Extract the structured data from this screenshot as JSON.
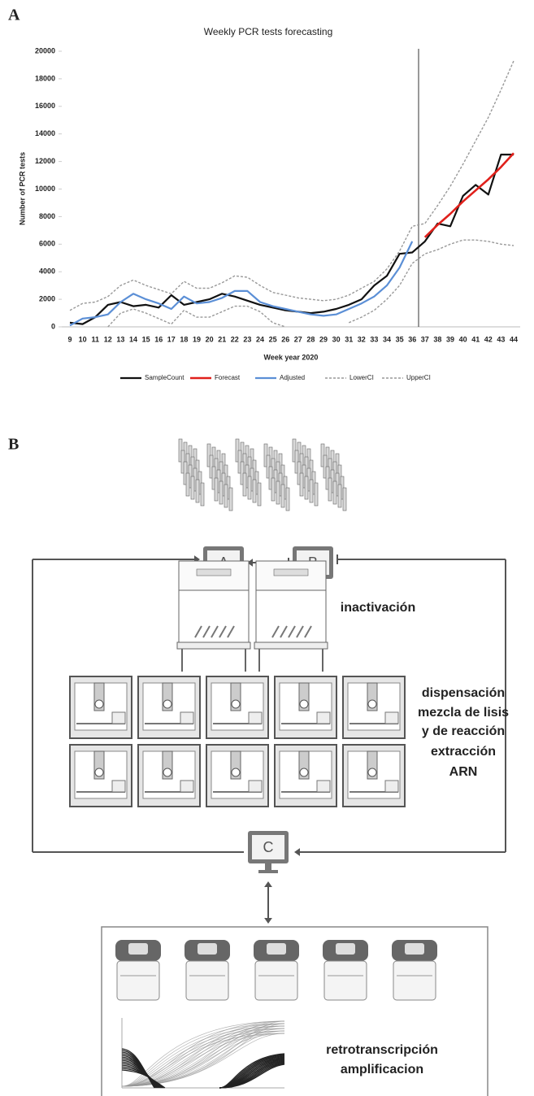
{
  "panels": {
    "a_label": "A",
    "b_label": "B"
  },
  "chart_data": {
    "type": "line",
    "title": "Weekly PCR tests forecasting",
    "x_label": "Week year 2020",
    "y_label": "Number of PCR tests",
    "categories": [
      "9",
      "10",
      "11",
      "12",
      "13",
      "14",
      "15",
      "16",
      "17",
      "18",
      "19",
      "20",
      "21",
      "22",
      "23",
      "24",
      "25",
      "26",
      "27",
      "28",
      "29",
      "30",
      "31",
      "32",
      "33",
      "34",
      "35",
      "36",
      "37",
      "38",
      "39",
      "40",
      "41",
      "42",
      "43",
      "44"
    ],
    "ylim": [
      0,
      20000
    ],
    "yticks": [
      0,
      2000,
      4000,
      6000,
      8000,
      10000,
      12000,
      14000,
      16000,
      18000,
      20000
    ],
    "grid": false,
    "legend": "bottom",
    "series": [
      {
        "name": "SampleCount",
        "color": "#111111",
        "width": 2.2,
        "dashed": false,
        "values": [
          300,
          200,
          700,
          1600,
          1800,
          1500,
          1600,
          1400,
          2300,
          1600,
          1800,
          2000,
          2400,
          2200,
          1900,
          1600,
          1400,
          1200,
          1100,
          1000,
          1100,
          1300,
          1600,
          2000,
          3000,
          3700,
          5300,
          5400,
          6200,
          7500,
          7300,
          9500,
          10300,
          9600,
          12500,
          12500
        ]
      },
      {
        "name": "Forecast",
        "color": "#e0201b",
        "width": 2.6,
        "dashed": false,
        "values": [
          null,
          null,
          null,
          null,
          null,
          null,
          null,
          null,
          null,
          null,
          null,
          null,
          null,
          null,
          null,
          null,
          null,
          null,
          null,
          null,
          null,
          null,
          null,
          null,
          null,
          null,
          null,
          null,
          6500,
          7400,
          8200,
          9100,
          9900,
          10700,
          11600,
          12600
        ]
      },
      {
        "name": "Adjusted",
        "color": "#5b8fd6",
        "width": 2.2,
        "dashed": false,
        "values": [
          100,
          600,
          700,
          900,
          1800,
          2400,
          2000,
          1700,
          1300,
          2200,
          1700,
          1800,
          2100,
          2600,
          2600,
          1800,
          1500,
          1300,
          1100,
          900,
          800,
          900,
          1300,
          1700,
          2200,
          3000,
          4300,
          6200,
          null,
          null,
          null,
          null,
          null,
          null,
          null,
          null
        ]
      },
      {
        "name": "LowerCI",
        "color": "#999999",
        "width": 1.4,
        "dashed": true,
        "values": [
          null,
          null,
          null,
          0,
          1000,
          1300,
          1000,
          600,
          200,
          1200,
          700,
          700,
          1100,
          1500,
          1500,
          1100,
          300,
          0,
          null,
          null,
          null,
          null,
          300,
          700,
          1200,
          2000,
          3000,
          4600,
          5300,
          5600,
          6000,
          6300,
          6300,
          6200,
          6000,
          5900
        ]
      },
      {
        "name": "UpperCI",
        "color": "#999999",
        "width": 1.4,
        "dashed": true,
        "values": [
          1200,
          1700,
          1800,
          2200,
          3000,
          3400,
          3000,
          2700,
          2400,
          3300,
          2800,
          2800,
          3200,
          3700,
          3600,
          3000,
          2500,
          2300,
          2100,
          2000,
          1900,
          2000,
          2300,
          2800,
          3300,
          4200,
          5500,
          7300,
          7500,
          8800,
          10200,
          11800,
          13500,
          15200,
          17200,
          19300
        ]
      }
    ]
  },
  "diagram": {
    "computers": [
      "A",
      "B",
      "C"
    ],
    "steps": [
      {
        "lines": [
          "inactivación"
        ]
      },
      {
        "lines": [
          "dispensación",
          "mezcla de lisis",
          "y de reacción"
        ]
      },
      {
        "lines": [
          "extracción",
          "ARN"
        ]
      },
      {
        "lines": [
          "retrotranscripción",
          "amplificacion"
        ]
      }
    ]
  }
}
